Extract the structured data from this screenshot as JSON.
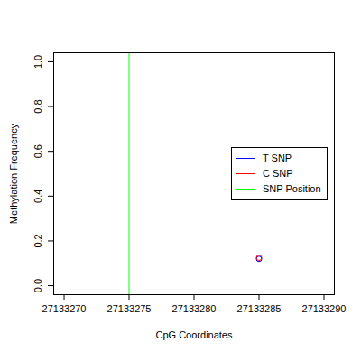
{
  "chart_data": {
    "type": "scatter",
    "x_label": "CpG Coordinates",
    "y_label": "Methylation Frequency",
    "x": [
      27133285
    ],
    "series": [
      {
        "name": "T SNP",
        "color": "#0000ff",
        "marker": "circle",
        "values": [
          0.12
        ]
      },
      {
        "name": "C SNP",
        "color": "#ff0000",
        "marker": "circle",
        "values": [
          0.125
        ]
      },
      {
        "name": "SNP Position",
        "color": "#00ff00",
        "type": "vline",
        "x": [
          27133275
        ]
      }
    ],
    "xlim": [
      27133269.2,
      27133290.8
    ],
    "xticks": [
      27133270,
      27133275,
      27133280,
      27133285,
      27133290
    ],
    "ylim": [
      -0.04,
      1.04
    ],
    "yticks": [
      {
        "value": 0,
        "label": "0.0"
      },
      {
        "value": 0.2,
        "label": "0.2"
      },
      {
        "value": 0.4,
        "label": "0.4"
      },
      {
        "value": 0.6,
        "label": "0.6"
      },
      {
        "value": 0.8,
        "label": "0.8"
      },
      {
        "value": 1,
        "label": "1.0"
      }
    ],
    "legend": "right",
    "grid": false
  }
}
